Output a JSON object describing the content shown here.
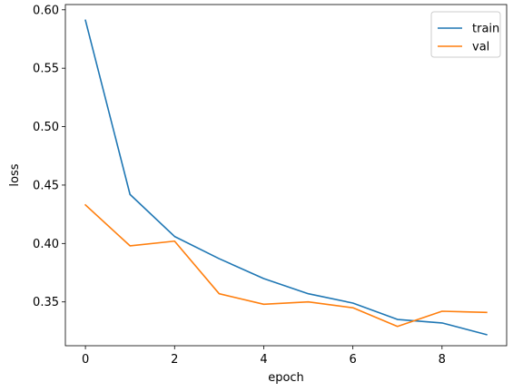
{
  "chart_data": {
    "type": "line",
    "title": "",
    "xlabel": "epoch",
    "ylabel": "loss",
    "x": [
      0,
      1,
      2,
      3,
      4,
      5,
      6,
      7,
      8,
      9
    ],
    "xlim": [
      -0.45,
      9.45
    ],
    "ylim": [
      0.3125,
      0.6045
    ],
    "xticks": [
      0,
      2,
      4,
      6,
      8
    ],
    "xtick_labels": [
      "0",
      "2",
      "4",
      "6",
      "8"
    ],
    "yticks": [
      0.35,
      0.4,
      0.45,
      0.5,
      0.55,
      0.6
    ],
    "ytick_labels": [
      "0.35",
      "0.40",
      "0.45",
      "0.50",
      "0.55",
      "0.60"
    ],
    "grid": false,
    "legend_position": "top-right",
    "series": [
      {
        "name": "train",
        "color": "#1f77b4",
        "values": [
          0.591,
          0.442,
          0.406,
          0.387,
          0.37,
          0.357,
          0.349,
          0.335,
          0.332,
          0.322
        ]
      },
      {
        "name": "val",
        "color": "#ff7f0e",
        "values": [
          0.433,
          0.398,
          0.402,
          0.357,
          0.348,
          0.35,
          0.345,
          0.329,
          0.342,
          0.341
        ]
      }
    ]
  }
}
